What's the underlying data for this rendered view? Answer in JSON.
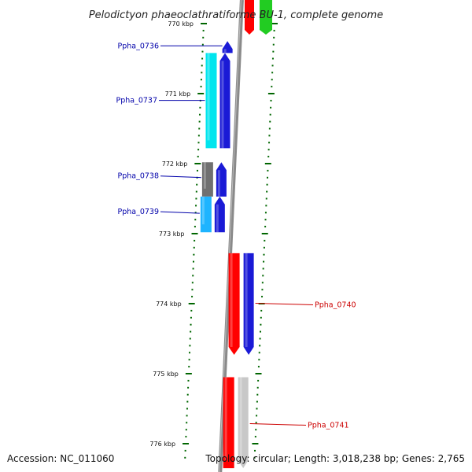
{
  "header": {
    "title": "Pelodictyon phaeoclathratiforme BU-1, complete genome"
  },
  "footer": {
    "accession": "Accession: NC_011060",
    "topology": "Topology: circular; Length: 3,018,238 bp; Genes: 2,765"
  },
  "scale": {
    "kbp_marks": [
      {
        "kbp": 770,
        "label": "770 kbp"
      },
      {
        "kbp": 771,
        "label": "771 kbp"
      },
      {
        "kbp": 772,
        "label": "772 kbp"
      },
      {
        "kbp": 773,
        "label": "773 kbp"
      },
      {
        "kbp": 774,
        "label": "774 kbp"
      },
      {
        "kbp": 775,
        "label": "775 kbp"
      },
      {
        "kbp": 776,
        "label": "776 kbp"
      }
    ]
  },
  "genes": [
    {
      "id": "Ppha_0736",
      "label": "Ppha_0736",
      "strand": "minus",
      "start_kbp": 770.25,
      "end_kbp": 770.42,
      "color": "#1a1ad6",
      "shadow_color": null
    },
    {
      "id": "Ppha_0737",
      "label": "Ppha_0737",
      "strand": "minus",
      "start_kbp": 770.42,
      "end_kbp": 771.78,
      "color": "#1a1ad6",
      "shadow_color": "#00e5ee"
    },
    {
      "id": "Ppha_0738",
      "label": "Ppha_0738",
      "strand": "minus",
      "start_kbp": 771.98,
      "end_kbp": 772.47,
      "color": "#1a1ad6",
      "shadow_color": "#707070"
    },
    {
      "id": "Ppha_0739",
      "label": "Ppha_0739",
      "strand": "minus",
      "start_kbp": 772.47,
      "end_kbp": 772.98,
      "color": "#1a1ad6",
      "shadow_color": "#1eb4ff"
    },
    {
      "id": "Ppha_0740",
      "label": "Ppha_0740",
      "strand": "plus",
      "start_kbp": 773.28,
      "end_kbp": 774.73,
      "color": "#1a1ad6",
      "shadow_color": "#ff0000"
    },
    {
      "id": "Ppha_0741",
      "label": "Ppha_0741",
      "strand": "plus",
      "start_kbp": 775.05,
      "end_kbp": 776.35,
      "color": "#c8c8c8",
      "shadow_color": "#ff0000"
    }
  ],
  "top_fragments": [
    {
      "name": "red-fragment",
      "color": "#ff0000"
    },
    {
      "name": "green-fragment",
      "color": "#22cc22"
    }
  ],
  "colors": {
    "minus_label": "#0000aa",
    "plus_label": "#cc0000",
    "backbone": "#8a8a8a",
    "tick": "#006600"
  }
}
